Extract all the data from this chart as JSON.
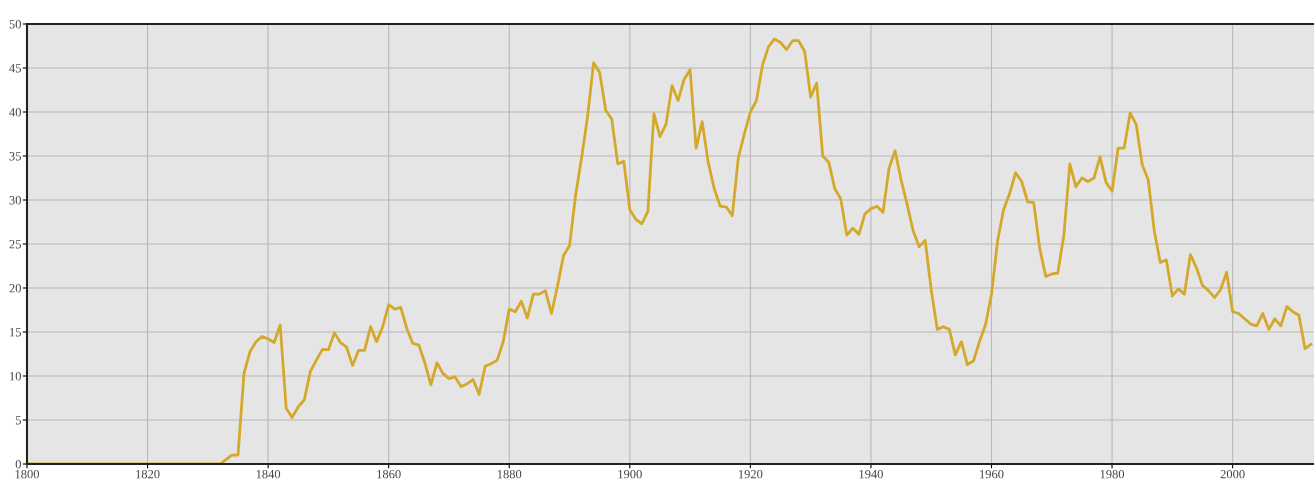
{
  "chart_data": {
    "type": "line",
    "x": [
      1800,
      1801,
      1802,
      1803,
      1804,
      1805,
      1806,
      1807,
      1808,
      1809,
      1810,
      1811,
      1812,
      1813,
      1814,
      1815,
      1816,
      1817,
      1818,
      1819,
      1820,
      1821,
      1822,
      1823,
      1824,
      1825,
      1826,
      1827,
      1828,
      1829,
      1830,
      1831,
      1832,
      1833,
      1834,
      1835,
      1836,
      1837,
      1838,
      1839,
      1840,
      1841,
      1842,
      1843,
      1844,
      1845,
      1846,
      1847,
      1848,
      1849,
      1850,
      1851,
      1852,
      1853,
      1854,
      1855,
      1856,
      1857,
      1858,
      1859,
      1860,
      1861,
      1862,
      1863,
      1864,
      1865,
      1866,
      1867,
      1868,
      1869,
      1870,
      1871,
      1872,
      1873,
      1874,
      1875,
      1876,
      1877,
      1878,
      1879,
      1880,
      1881,
      1882,
      1883,
      1884,
      1885,
      1886,
      1887,
      1888,
      1889,
      1890,
      1891,
      1892,
      1893,
      1894,
      1895,
      1896,
      1897,
      1898,
      1899,
      1900,
      1901,
      1902,
      1903,
      1904,
      1905,
      1906,
      1907,
      1908,
      1909,
      1910,
      1911,
      1912,
      1913,
      1914,
      1915,
      1916,
      1917,
      1918,
      1919,
      1920,
      1921,
      1922,
      1923,
      1924,
      1925,
      1926,
      1927,
      1928,
      1929,
      1930,
      1931,
      1932,
      1933,
      1934,
      1935,
      1936,
      1937,
      1938,
      1939,
      1940,
      1941,
      1942,
      1943,
      1944,
      1945,
      1946,
      1947,
      1948,
      1949,
      1950,
      1951,
      1952,
      1953,
      1954,
      1955,
      1956,
      1957,
      1958,
      1959,
      1960,
      1961,
      1962,
      1963,
      1964,
      1965,
      1966,
      1967,
      1968,
      1969,
      1970,
      1971,
      1972,
      1973,
      1974,
      1975,
      1976,
      1977,
      1978,
      1979,
      1980,
      1981,
      1982,
      1983,
      1984,
      1985,
      1986,
      1987,
      1988,
      1989,
      1990,
      1991,
      1992,
      1993,
      1994,
      1995,
      1996,
      1997,
      1998,
      1999,
      2000,
      2001,
      2002,
      2003,
      2004,
      2005,
      2006,
      2007,
      2008,
      2009,
      2010,
      2011,
      2012,
      2013
    ],
    "series": [
      {
        "color": "#d4a82a",
        "values": [
          0,
          0,
          0,
          0,
          0,
          0,
          0,
          0,
          0,
          0,
          0,
          0,
          0,
          0,
          0,
          0,
          0,
          0,
          0,
          0,
          0,
          0,
          0,
          0,
          0,
          0,
          0,
          0,
          0,
          0,
          0,
          0,
          0,
          0.5,
          1,
          1,
          10.3,
          12.8,
          13.9,
          14.5,
          14.2,
          13.8,
          15.8,
          6.3,
          5.3,
          6.5,
          7.3,
          10.5,
          11.8,
          13,
          13,
          14.9,
          13.8,
          13.3,
          11.2,
          12.9,
          12.9,
          15.6,
          13.9,
          15.6,
          18.1,
          17.6,
          17.8,
          15.4,
          13.7,
          13.5,
          11.5,
          9,
          11.5,
          10.3,
          9.7,
          9.9,
          8.8,
          9.1,
          9.6,
          7.9,
          11.1,
          11.4,
          11.8,
          13.9,
          17.6,
          17.3,
          18.5,
          16.6,
          19.3,
          19.3,
          19.7,
          17.1,
          20.2,
          23.7,
          24.8,
          30.5,
          34.8,
          39.5,
          45.6,
          44.5,
          40.2,
          39.2,
          34.1,
          34.4,
          28.9,
          27.8,
          27.3,
          28.7,
          39.8,
          37.2,
          38.6,
          43,
          41.3,
          43.7,
          44.8,
          35.9,
          38.9,
          34.3,
          31.3,
          29.3,
          29.2,
          28.2,
          34.8,
          37.5,
          40,
          41.3,
          45.3,
          47.4,
          48.3,
          47.9,
          47.1,
          48.1,
          48.1,
          46.9,
          41.7,
          43.3,
          35,
          34.3,
          31.3,
          30.1,
          26,
          26.8,
          26.1,
          28.4,
          29,
          29.3,
          28.6,
          33.6,
          35.6,
          32.3,
          29.5,
          26.5,
          24.7,
          25.4,
          19.8,
          15.3,
          15.6,
          15.3,
          12.4,
          13.9,
          11.3,
          11.7,
          13.9,
          15.8,
          19.3,
          25.3,
          28.9,
          30.7,
          33.1,
          32.1,
          29.8,
          29.7,
          24.5,
          21.3,
          21.6,
          21.7,
          26,
          34.1,
          31.5,
          32.5,
          32.1,
          32.5,
          34.9,
          32,
          31,
          35.9,
          35.9,
          39.9,
          38.6,
          34,
          32.3,
          26.5,
          22.9,
          23.2,
          19.1,
          19.9,
          19.3,
          23.8,
          22.3,
          20.3,
          19.7,
          18.9,
          19.8,
          21.8,
          17.3,
          17.1,
          16.5,
          15.9,
          15.7,
          17.1,
          15.3,
          16.5,
          15.7,
          17.9,
          17.3,
          16.9,
          13.1,
          13.6
        ]
      }
    ],
    "xlim": [
      1800,
      2013.5
    ],
    "xticks": [
      1800,
      1820,
      1840,
      1860,
      1880,
      1900,
      1920,
      1940,
      1960,
      1980,
      2000
    ],
    "ylim": [
      0,
      50
    ],
    "yticks": [
      0,
      5,
      10,
      15,
      20,
      25,
      30,
      35,
      40,
      45,
      50
    ],
    "grid": true,
    "marker": "none",
    "line_style": "solid"
  }
}
